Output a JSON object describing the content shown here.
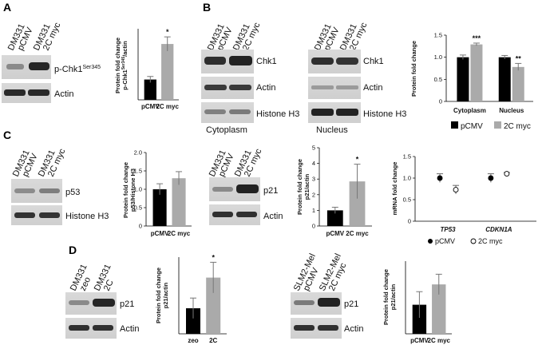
{
  "panels": {
    "A": {
      "letter": "A",
      "lanes": [
        "DM331",
        "pCMV",
        "DM331",
        "2C myc"
      ],
      "blots": [
        {
          "label": "p-Chk1",
          "sup": "Ser345"
        },
        {
          "label": "Actin",
          "sup": ""
        }
      ]
    },
    "B": {
      "letter": "B",
      "cyto_lanes": [
        "DM331",
        "pCMV",
        "DM331",
        "2C myc"
      ],
      "nuc_lanes": [
        "DM331",
        "pCMV",
        "DM331",
        "2C myc"
      ],
      "cyto_blots": [
        "Chk1",
        "Actin",
        "Histone H3"
      ],
      "nuc_blots": [
        "Chk1",
        "Actin",
        "Histone H3"
      ],
      "cyto_caption": "Cytoplasm",
      "nuc_caption": "Nucleus"
    },
    "C": {
      "letter": "C",
      "p53_lanes": [
        "DM331",
        "pCMV",
        "DM331",
        "2C myc"
      ],
      "p53_blots": [
        "p53",
        "Histone H3"
      ],
      "p21_lanes": [
        "DM331",
        "pCMV",
        "DM331",
        "2C myc"
      ],
      "p21_blots": [
        "p21",
        "Actin"
      ]
    },
    "D": {
      "letter": "D",
      "left_lanes": [
        "DM331",
        "zeo",
        "DM331",
        "2C"
      ],
      "left_blots": [
        "p21",
        "Actin"
      ],
      "right_lanes": [
        "SLM2-Mel",
        "pCMV",
        "SLM2-Mel",
        "2C myc"
      ],
      "right_blots": [
        "p21",
        "Actin"
      ]
    }
  },
  "legend": {
    "black": "pCMV",
    "grey": "2C myc"
  },
  "colors": {
    "black_bar": "#000000",
    "grey_bar": "#aaaaaa",
    "error": "#777777"
  },
  "chart_data": [
    {
      "id": "A",
      "type": "bar",
      "ylabel": "Protein fold change",
      "ylabel2": "p-Chk1",
      "ylabel2_sup": "Ser345",
      "ylabel2_tail": "/actin",
      "categories": [
        "pCMV",
        "2C myc"
      ],
      "values": [
        1.0,
        2.75
      ],
      "errors": [
        0.15,
        0.35
      ],
      "colors": [
        "#000000",
        "#aaaaaa"
      ],
      "ylim": [
        0,
        3.5
      ],
      "yticks": [],
      "sig": [
        "",
        "*"
      ]
    },
    {
      "id": "B",
      "type": "bar",
      "ylabel": "Protein fold change",
      "groups": [
        "Cytoplasm",
        "Nucleus"
      ],
      "series": [
        {
          "name": "pCMV",
          "values": [
            1.0,
            1.0
          ],
          "errors": [
            0.05,
            0.04
          ]
        },
        {
          "name": "2C myc",
          "values": [
            1.29,
            0.78
          ],
          "errors": [
            0.03,
            0.08
          ]
        }
      ],
      "ylim": [
        0,
        1.5
      ],
      "yticks": [
        "0",
        "0.5",
        "1.0",
        "1.5"
      ],
      "sig": [
        "***",
        "**"
      ]
    },
    {
      "id": "C-p53",
      "type": "bar",
      "ylabel": "Protein fold change",
      "ylabel2": "p53/Histone H3",
      "categories": [
        "pCMV",
        "2C myc"
      ],
      "values": [
        1.0,
        1.3
      ],
      "errors": [
        0.15,
        0.18
      ],
      "colors": [
        "#000000",
        "#aaaaaa"
      ],
      "ylim": [
        0,
        2.0
      ],
      "yticks": [
        "0",
        "0.5",
        "1.0",
        "1.5",
        "2.0"
      ],
      "sig": [
        "",
        ""
      ]
    },
    {
      "id": "C-p21",
      "type": "bar",
      "ylabel": "Protein fold change",
      "ylabel2": "p21/actin",
      "categories": [
        "pCMV",
        "2C myc"
      ],
      "values": [
        1.0,
        2.85
      ],
      "errors": [
        0.2,
        1.1
      ],
      "colors": [
        "#000000",
        "#aaaaaa"
      ],
      "ylim": [
        0,
        5
      ],
      "yticks": [
        "0",
        "1",
        "2",
        "3",
        "4",
        "5"
      ],
      "sig": [
        "",
        "*"
      ]
    },
    {
      "id": "C-mRNA",
      "type": "scatter",
      "ylabel": "mRNA fold change",
      "groups": [
        "TP53",
        "CDKN1A"
      ],
      "series": [
        {
          "name": "pCMV",
          "values": [
            1.0,
            1.0
          ],
          "errors": [
            0.1,
            0.1
          ]
        },
        {
          "name": "2C myc",
          "values": [
            0.73,
            1.1
          ],
          "errors": [
            0.1,
            0.03
          ]
        }
      ],
      "ylim": [
        0,
        1.5
      ],
      "yticks": [
        "0",
        "0.5",
        "1.0",
        "1.5"
      ]
    },
    {
      "id": "D-left",
      "type": "bar",
      "ylabel": "Protein fold change",
      "ylabel2": "p21/actin",
      "categories": [
        "zeo",
        "2C"
      ],
      "values": [
        1.0,
        2.2
      ],
      "errors": [
        0.4,
        0.6
      ],
      "colors": [
        "#000000",
        "#aaaaaa"
      ],
      "ylim": [
        0,
        3.0
      ],
      "yticks": [],
      "sig": [
        "",
        "*"
      ]
    },
    {
      "id": "D-right",
      "type": "bar",
      "ylabel": "Protein fold change",
      "ylabel2": "p21/actin",
      "categories": [
        "pCMV",
        "2C myc"
      ],
      "values": [
        1.0,
        1.7
      ],
      "errors": [
        0.45,
        0.35
      ],
      "colors": [
        "#000000",
        "#aaaaaa"
      ],
      "ylim": [
        0,
        2.5
      ],
      "yticks": [],
      "sig": [
        "",
        ""
      ]
    }
  ]
}
